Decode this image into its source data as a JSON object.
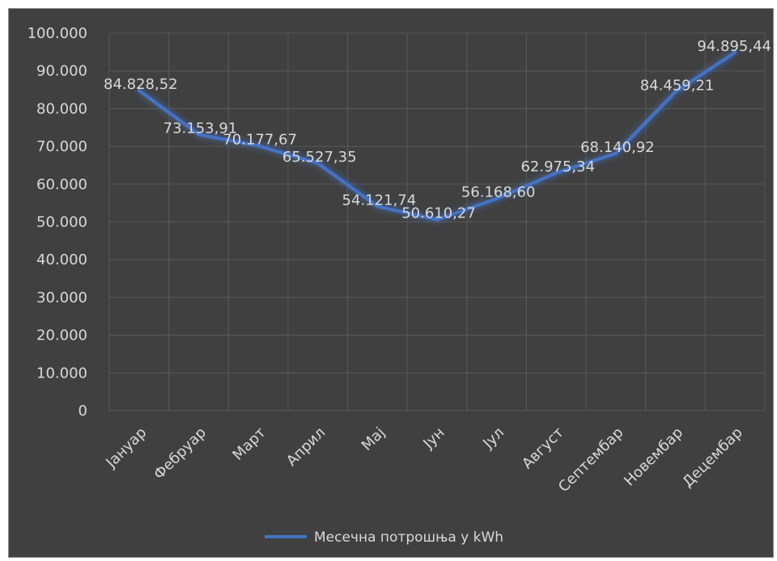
{
  "chart_data": {
    "type": "line",
    "title": "",
    "xlabel": "",
    "ylabel": "",
    "categories": [
      "Јануар",
      "Фебруар",
      "Март",
      "Април",
      "Мај",
      "Јун",
      "Јул",
      "Август",
      "Септембар",
      "Новембар",
      "Децембар"
    ],
    "series": [
      {
        "name": "Месечна потрошња у kWh",
        "values": [
          84828.52,
          73153.91,
          70177.67,
          65527.35,
          54121.74,
          50610.27,
          56168.6,
          62975.34,
          68140.92,
          84459.21,
          94895.44
        ],
        "data_labels": [
          "84.828,52",
          "73.153,91",
          "70.177,67",
          "65.527,35",
          "54.121,74",
          "50.610,27",
          "56.168,60",
          "62.975,34",
          "68.140,92",
          "84.459,21",
          "94.895,44"
        ],
        "color": "#4472c4"
      }
    ],
    "ylim": [
      0,
      100000
    ],
    "y_ticks": [
      0,
      10000,
      20000,
      30000,
      40000,
      50000,
      60000,
      70000,
      80000,
      90000,
      100000
    ],
    "y_tick_labels": [
      "0",
      "10.000",
      "20.000",
      "30.000",
      "40.000",
      "50.000",
      "60.000",
      "70.000",
      "80.000",
      "90.000",
      "100.000"
    ],
    "grid": true,
    "legend": "bottom",
    "background_color": "#404040",
    "grid_color": "#595959",
    "text_color": "#d9d9d9"
  }
}
